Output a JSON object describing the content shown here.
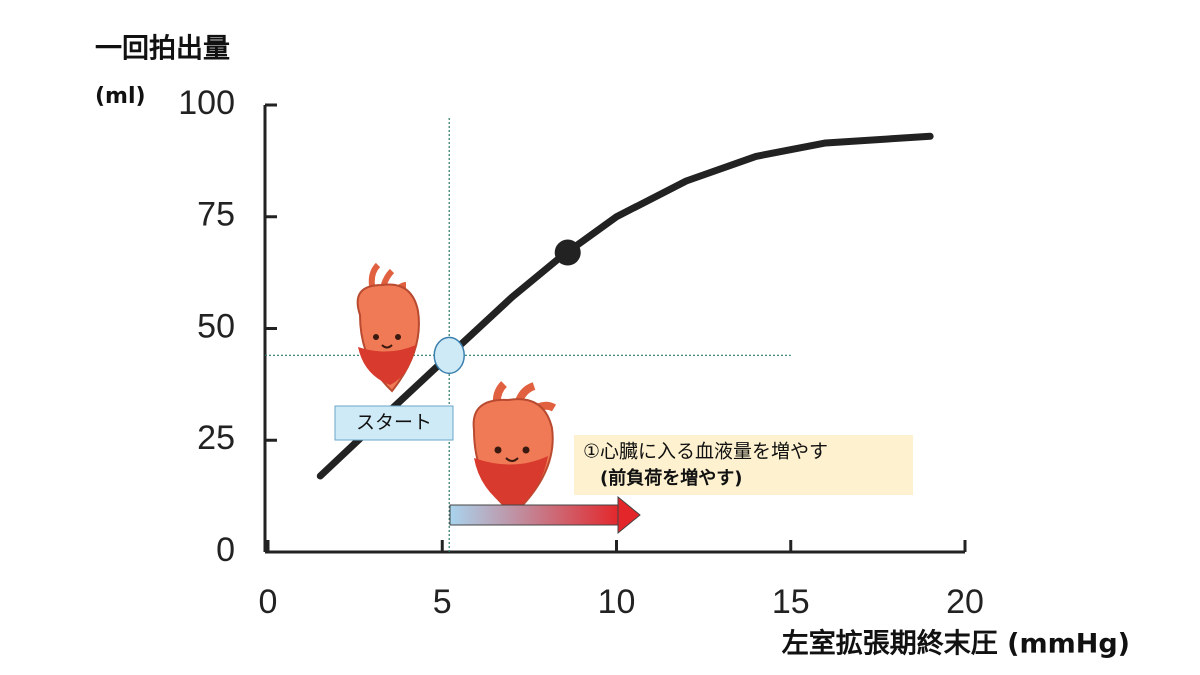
{
  "chart_data": {
    "type": "line",
    "y_label": "一回拍出量",
    "y_unit": "(ml)",
    "x_label": "左室拡張期終末圧 (mmHg)",
    "x": [
      1.5,
      3,
      5.2,
      7,
      8.4,
      10,
      12,
      14,
      16,
      19
    ],
    "values": [
      17,
      28,
      44,
      57,
      66,
      75,
      83,
      88.5,
      91.5,
      93
    ],
    "color": "#222222",
    "xlim": [
      0,
      20
    ],
    "xticks": [
      0,
      5,
      10,
      15,
      20
    ],
    "ylim": [
      0,
      100
    ],
    "yticks": [
      0,
      25,
      50,
      75,
      100
    ],
    "points": [
      {
        "x": 5.2,
        "y": 44,
        "color": "#cfeaf7"
      },
      {
        "x": 8.6,
        "y": 67,
        "color": "#222222"
      }
    ],
    "annotations": [
      "スタート",
      "①心臓に入る血液量を増やす",
      "(前負荷を増やす)"
    ]
  }
}
